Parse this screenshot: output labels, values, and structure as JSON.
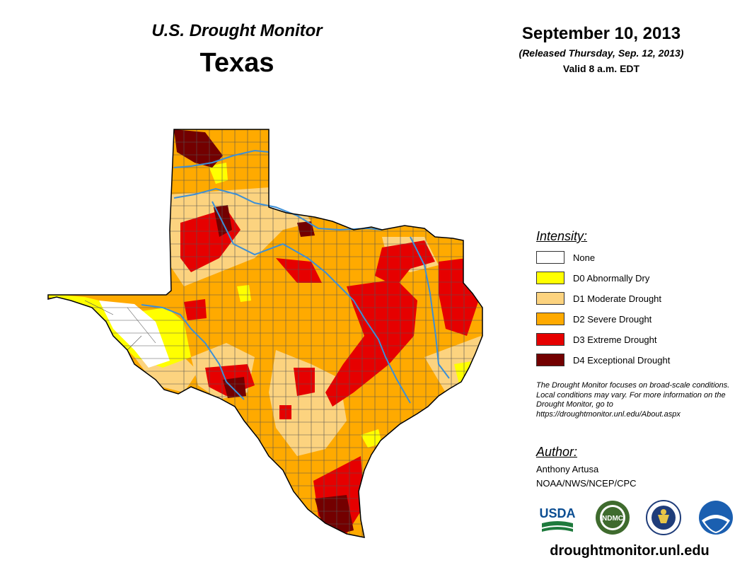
{
  "header": {
    "monitor_title": "U.S. Drought Monitor",
    "state": "Texas",
    "date": "September 10, 2013",
    "released": "(Released Thursday, Sep. 12, 2013)",
    "valid": "Valid 8 a.m. EDT"
  },
  "legend": {
    "title": "Intensity:",
    "items": [
      {
        "label": "None",
        "color": "#ffffff"
      },
      {
        "label": "D0 Abnormally Dry",
        "color": "#ffff00"
      },
      {
        "label": "D1 Moderate Drought",
        "color": "#fcd37f"
      },
      {
        "label": "D2 Severe Drought",
        "color": "#ffaa00"
      },
      {
        "label": "D3 Extreme Drought",
        "color": "#e60000"
      },
      {
        "label": "D4 Exceptional Drought",
        "color": "#730000"
      }
    ]
  },
  "note": "The Drought Monitor focuses on broad-scale conditions. Local conditions may vary. For more information on the Drought Monitor, go to https://droughtmonitor.unl.edu/About.aspx",
  "author": {
    "title": "Author:",
    "name": "Anthony Artusa",
    "org": "NOAA/NWS/NCEP/CPC"
  },
  "logos": [
    {
      "name": "USDA",
      "icon": "usda-logo"
    },
    {
      "name": "NDMC",
      "icon": "ndmc-logo"
    },
    {
      "name": "DOC",
      "icon": "doc-seal"
    },
    {
      "name": "NOAA",
      "icon": "noaa-logo"
    }
  ],
  "url": "droughtmonitor.unl.edu",
  "colors": {
    "river": "#3c8fd6",
    "county_line": "#555555"
  }
}
